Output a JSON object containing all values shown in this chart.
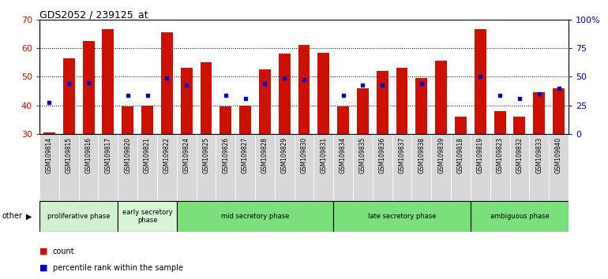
{
  "title": "GDS2052 / 239125_at",
  "samples": [
    "GSM109814",
    "GSM109815",
    "GSM109816",
    "GSM109817",
    "GSM109820",
    "GSM109821",
    "GSM109822",
    "GSM109824",
    "GSM109825",
    "GSM109826",
    "GSM109827",
    "GSM109828",
    "GSM109829",
    "GSM109830",
    "GSM109831",
    "GSM109834",
    "GSM109835",
    "GSM109836",
    "GSM109837",
    "GSM109838",
    "GSM109839",
    "GSM109818",
    "GSM109819",
    "GSM109823",
    "GSM109832",
    "GSM109833",
    "GSM109840"
  ],
  "counts": [
    30.5,
    56.5,
    62.5,
    66.5,
    39.5,
    40.0,
    65.5,
    53.0,
    55.0,
    39.5,
    40.0,
    52.5,
    58.0,
    61.0,
    58.5,
    39.5,
    46.0,
    52.0,
    53.0,
    49.5,
    55.5,
    36.0,
    66.5,
    38.0,
    36.0,
    44.5,
    46.0
  ],
  "percentiles": [
    41.0,
    47.5,
    48.0,
    null,
    43.5,
    43.5,
    49.5,
    47.0,
    null,
    43.5,
    42.5,
    47.5,
    49.5,
    49.0,
    null,
    43.5,
    47.0,
    47.0,
    null,
    47.5,
    null,
    null,
    50.0,
    43.5,
    42.5,
    44.0,
    46.0
  ],
  "baseline": 30,
  "ylim_left": [
    30,
    70
  ],
  "ylim_right": [
    0,
    100
  ],
  "phases": [
    {
      "label": "proliferative phase",
      "start": 0,
      "end": 4,
      "color": "#d0f0d0"
    },
    {
      "label": "early secretory\nphase",
      "start": 4,
      "end": 7,
      "color": "#d8f5d8"
    },
    {
      "label": "mid secretory phase",
      "start": 7,
      "end": 15,
      "color": "#7be07b"
    },
    {
      "label": "late secretory phase",
      "start": 15,
      "end": 22,
      "color": "#7be07b"
    },
    {
      "label": "ambiguous phase",
      "start": 22,
      "end": 27,
      "color": "#7be07b"
    }
  ],
  "bar_color": "#cc1100",
  "dot_color": "#0000cc",
  "bg_color": "#ffffff",
  "left_label_color": "#cc1100",
  "right_label_color": "#0000cc",
  "yticks_left": [
    30,
    40,
    50,
    60,
    70
  ],
  "yticks_right": [
    0,
    25,
    50,
    75,
    100
  ],
  "grid_vals": [
    40,
    50,
    60
  ],
  "tick_label_bg": "#d8d8d8",
  "num_samples": 27
}
